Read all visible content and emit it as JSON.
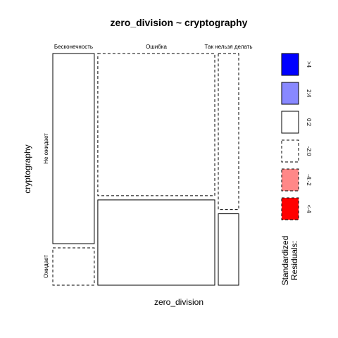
{
  "chart_data": {
    "type": "mosaic",
    "title": "zero_division ~ cryptography",
    "xlabel": "zero_division",
    "ylabel": "cryptography",
    "x_categories": [
      "Бесконечность",
      "Ошибка",
      "Так нельзя делать"
    ],
    "y_categories": [
      "Не ожидает",
      "Ожидает"
    ],
    "cells": [
      {
        "x": "Бесконечность",
        "y": "Не ожидает",
        "proportion_x": 0.232,
        "proportion_y_within_x": 0.836,
        "residual_class": "0:2",
        "dashed": false,
        "fill": "#ffffff"
      },
      {
        "x": "Бесконечность",
        "y": "Ожидает",
        "proportion_x": 0.232,
        "proportion_y_within_x": 0.164,
        "residual_class": "-2:0",
        "dashed": true,
        "fill": "#ffffff"
      },
      {
        "x": "Ошибка",
        "y": "Не ожидает",
        "proportion_x": 0.654,
        "proportion_y_within_x": 0.625,
        "residual_class": "-2:0",
        "dashed": true,
        "fill": "#ffffff"
      },
      {
        "x": "Ошибка",
        "y": "Ожидает",
        "proportion_x": 0.654,
        "proportion_y_within_x": 0.375,
        "residual_class": "0:2",
        "dashed": false,
        "fill": "#ffffff"
      },
      {
        "x": "Так нельзя делать",
        "y": "Не ожидает",
        "proportion_x": 0.114,
        "proportion_y_within_x": 0.686,
        "residual_class": "-2:0",
        "dashed": true,
        "fill": "#ffffff"
      },
      {
        "x": "Так нельзя делать",
        "y": "Ожидает",
        "proportion_x": 0.114,
        "proportion_y_within_x": 0.314,
        "residual_class": "0:2",
        "dashed": false,
        "fill": "#ffffff"
      }
    ],
    "legend": {
      "title_lines": [
        "Standardized",
        "Residuals:"
      ],
      "items": [
        {
          "label": ">4",
          "fill": "#0000ff",
          "dashed": false
        },
        {
          "label": "2:4",
          "fill": "#8888ff",
          "dashed": false
        },
        {
          "label": "0:2",
          "fill": "#ffffff",
          "dashed": false
        },
        {
          "label": "-2:0",
          "fill": "#ffffff",
          "dashed": true
        },
        {
          "label": "-4:-2",
          "fill": "#ff8888",
          "dashed": true
        },
        {
          "label": "<-4",
          "fill": "#ff0000",
          "dashed": true
        }
      ],
      "placement": "right"
    }
  }
}
